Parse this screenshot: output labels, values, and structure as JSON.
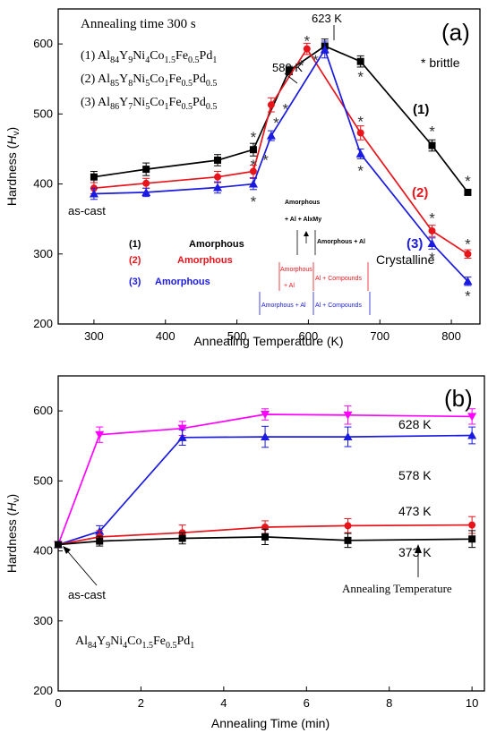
{
  "chart_data": [
    {
      "id": "a",
      "type": "line",
      "panel_label": "(a)",
      "xlabel": "Annealing Temperature (K)",
      "ylabel_main": "Hardness (",
      "ylabel_italic": "H",
      "ylabel_sub": "v",
      "ylabel_end": ")",
      "xlim": [
        250,
        840
      ],
      "ylim": [
        200,
        650
      ],
      "xticks": [
        300,
        400,
        500,
        600,
        700,
        800
      ],
      "yticks": [
        200,
        300,
        400,
        500,
        600
      ],
      "grid": false,
      "title_annotation": "Annealing time 300 s",
      "series": [
        {
          "name": "(1)",
          "color": "#000000",
          "marker": "square",
          "x": [
            300,
            373,
            473,
            523,
            573,
            623,
            673,
            773,
            823
          ],
          "y": [
            410,
            421,
            434,
            449,
            562,
            597,
            575,
            455,
            388
          ],
          "err": [
            8,
            9,
            8,
            9,
            6,
            10,
            8,
            8,
            4
          ]
        },
        {
          "name": "(2)",
          "color": "#e8141b",
          "marker": "circle",
          "x": [
            300,
            373,
            473,
            523,
            548,
            598,
            673,
            773,
            823
          ],
          "y": [
            394,
            401,
            410,
            418,
            513,
            593,
            473,
            333,
            300
          ],
          "err": [
            8,
            7,
            8,
            9,
            10,
            8,
            10,
            8,
            6
          ]
        },
        {
          "name": "(3)",
          "color": "#1a1ae0",
          "marker": "triangle",
          "x": [
            300,
            373,
            473,
            523,
            548,
            623,
            673,
            773,
            823
          ],
          "y": [
            386,
            388,
            395,
            400,
            469,
            592,
            443,
            315,
            261
          ],
          "err": [
            8,
            6,
            8,
            8,
            7,
            12,
            7,
            8,
            6
          ]
        }
      ],
      "legend": [
        {
          "label": "(1) Al84Y9Ni4Co1.5Fe0.5Pd1",
          "parts": [
            [
              "(1) Al",
              ""
            ],
            [
              "84",
              "sub"
            ],
            [
              "Y",
              ""
            ],
            [
              "9",
              "sub"
            ],
            [
              "Ni",
              ""
            ],
            [
              "4",
              "sub"
            ],
            [
              "Co",
              ""
            ],
            [
              "1.5",
              "sub"
            ],
            [
              "Fe",
              ""
            ],
            [
              "0.5",
              "sub"
            ],
            [
              "Pd",
              ""
            ],
            [
              "1",
              "sub"
            ]
          ]
        },
        {
          "label": "(2) Al85Y8Ni5Co1Fe0.5Pd0.5",
          "parts": [
            [
              "(2) Al",
              ""
            ],
            [
              "85",
              "sub"
            ],
            [
              "Y",
              ""
            ],
            [
              "8",
              "sub"
            ],
            [
              "Ni",
              ""
            ],
            [
              "5",
              "sub"
            ],
            [
              "Co",
              ""
            ],
            [
              "1",
              "sub"
            ],
            [
              "Fe",
              ""
            ],
            [
              "0.5",
              "sub"
            ],
            [
              "Pd",
              ""
            ],
            [
              "0.5",
              "sub"
            ]
          ]
        },
        {
          "label": "(3) Al86Y7Ni5Co1Fe0.5Pd0.5",
          "parts": [
            [
              "(3) Al",
              ""
            ],
            [
              "86",
              "sub"
            ],
            [
              "Y",
              ""
            ],
            [
              "7",
              "sub"
            ],
            [
              "Ni",
              ""
            ],
            [
              "5",
              "sub"
            ],
            [
              "Co",
              ""
            ],
            [
              "1",
              "sub"
            ],
            [
              "Fe",
              ""
            ],
            [
              "0.5",
              "sub"
            ],
            [
              "Pd",
              ""
            ],
            [
              "0.5",
              "sub"
            ]
          ]
        }
      ],
      "annotations": {
        "as_cast": "as-cast",
        "k580": "580 K",
        "k623": "623 K",
        "brittle": "* brittle",
        "crystalline": "Crystalline",
        "curve1": "(1)",
        "curve2": "(2)",
        "curve3": "(3)",
        "row1_label": "(1)",
        "row1_phase": "Amorphous",
        "row2_label": "(2)",
        "row2_phase": "Amorphous",
        "row3_label": "(3)",
        "row3_phase": "Amorphous",
        "box_top_line1": "Amorphous",
        "box_top_line2": "+ Al + AlxMy",
        "box_row1_right": "Amorphous + Al",
        "box_row2_a": "Amorphous",
        "box_row2_b": "+   Al",
        "box_row2_c": "Al + Compounds",
        "box_row3_a": "Amorphous + Al",
        "box_row3_b": "Al + Compounds"
      },
      "brittle_marks": [
        {
          "x": 523,
          "y": 470
        },
        {
          "x": 523,
          "y": 430
        },
        {
          "x": 523,
          "y": 378
        },
        {
          "x": 540,
          "y": 437
        },
        {
          "x": 555,
          "y": 490
        },
        {
          "x": 568,
          "y": 510
        },
        {
          "x": 590,
          "y": 572
        },
        {
          "x": 598,
          "y": 607
        },
        {
          "x": 610,
          "y": 580
        },
        {
          "x": 673,
          "y": 556
        },
        {
          "x": 673,
          "y": 492
        },
        {
          "x": 673,
          "y": 422
        },
        {
          "x": 773,
          "y": 478
        },
        {
          "x": 773,
          "y": 354
        },
        {
          "x": 773,
          "y": 297
        },
        {
          "x": 823,
          "y": 407
        },
        {
          "x": 823,
          "y": 317
        },
        {
          "x": 823,
          "y": 243
        }
      ]
    },
    {
      "id": "b",
      "type": "line",
      "panel_label": "(b)",
      "xlabel": "Annealing Time (min)",
      "ylabel_main": "Hardness (",
      "ylabel_italic": "H",
      "ylabel_sub": "v",
      "ylabel_end": ")",
      "xlim": [
        0,
        10.3
      ],
      "ylim": [
        200,
        650
      ],
      "xticks": [
        0,
        2,
        4,
        6,
        8,
        10
      ],
      "yticks": [
        200,
        300,
        400,
        500,
        600
      ],
      "grid": false,
      "series": [
        {
          "name": "628 K",
          "color": "#ff00ff",
          "marker": "triangle-down",
          "x": [
            0,
            1,
            3,
            5,
            7,
            10
          ],
          "y": [
            409,
            566,
            575,
            595,
            594,
            592
          ],
          "err": [
            0,
            11,
            10,
            8,
            13,
            11
          ]
        },
        {
          "name": "578 K",
          "color": "#1a1ae0",
          "marker": "triangle",
          "x": [
            0,
            1,
            3,
            5,
            7,
            10
          ],
          "y": [
            409,
            428,
            562,
            563,
            563,
            565
          ],
          "err": [
            0,
            8,
            11,
            15,
            14,
            12
          ]
        },
        {
          "name": "473 K",
          "color": "#e8141b",
          "marker": "circle",
          "x": [
            0,
            1,
            3,
            5,
            7,
            10
          ],
          "y": [
            409,
            420,
            426,
            434,
            436,
            437
          ],
          "err": [
            0,
            9,
            11,
            9,
            10,
            12
          ]
        },
        {
          "name": "373 K",
          "color": "#000000",
          "marker": "square",
          "x": [
            0,
            1,
            3,
            5,
            7,
            10
          ],
          "y": [
            409,
            414,
            418,
            420,
            415,
            417
          ],
          "err": [
            0,
            7,
            8,
            11,
            10,
            12
          ]
        }
      ],
      "annotations": {
        "as_cast": "as-cast",
        "annealing_temp": "Annealing Temperature",
        "k628": "628 K",
        "k578": "578 K",
        "k473": "473 K",
        "k373": "373 K"
      },
      "composition": [
        [
          "Al",
          ""
        ],
        [
          "84",
          "sub"
        ],
        [
          "Y",
          ""
        ],
        [
          "9",
          "sub"
        ],
        [
          "Ni",
          ""
        ],
        [
          "4",
          "sub"
        ],
        [
          "Co",
          ""
        ],
        [
          "1.5",
          "sub"
        ],
        [
          "Fe",
          ""
        ],
        [
          "0.5",
          "sub"
        ],
        [
          "Pd",
          ""
        ],
        [
          "1",
          "sub"
        ]
      ]
    }
  ]
}
